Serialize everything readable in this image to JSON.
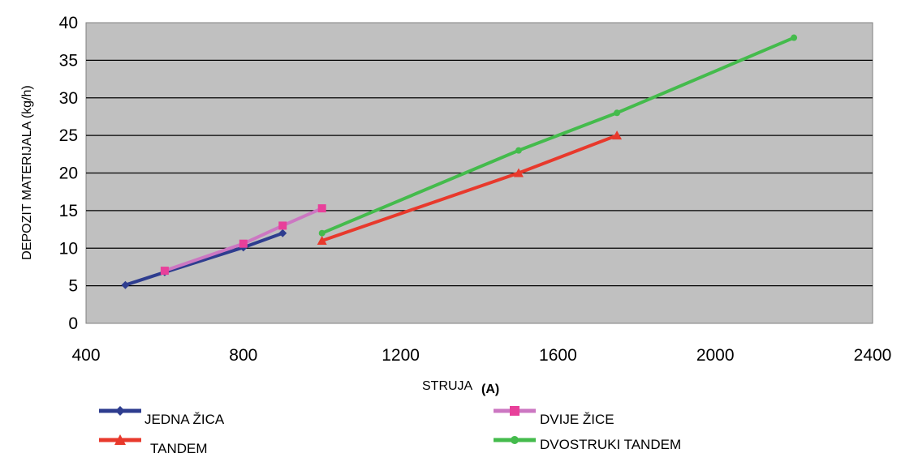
{
  "chart_data": {
    "type": "line",
    "title": "",
    "xlabel": "STRUJA",
    "xlabel_unit": "(A)",
    "ylabel": "DEPOZIT MATERIJALA (kg/h)",
    "xlim": [
      400,
      2400
    ],
    "ylim": [
      0,
      40
    ],
    "x_ticks": [
      "400",
      "800",
      "1200",
      "1600",
      "2000",
      "2400"
    ],
    "y_ticks": [
      "0",
      "5",
      "10",
      "15",
      "20",
      "25",
      "30",
      "35",
      "40"
    ],
    "grid": true,
    "legend_position": "bottom",
    "series": [
      {
        "name": "JEDNA ŽICA",
        "color": "#2E3D8F",
        "marker": "diamond",
        "x": [
          500,
          600,
          800,
          900
        ],
        "y": [
          5.1,
          6.8,
          10.1,
          12.0
        ]
      },
      {
        "name": "DVIJE ŽICE",
        "color": "#CC77C2",
        "marker": "square",
        "marker_color": "#E8409A",
        "x": [
          600,
          800,
          900,
          1000
        ],
        "y": [
          7.0,
          10.6,
          13.0,
          15.3
        ]
      },
      {
        "name": "TANDEM",
        "color": "#E8392C",
        "marker": "triangle",
        "x": [
          1000,
          1500,
          1750
        ],
        "y": [
          11.0,
          20.0,
          25.0
        ]
      },
      {
        "name": "DVOSTRUKI TANDEM",
        "color": "#44BB4C",
        "marker": "circle",
        "x": [
          1000,
          1500,
          1750,
          2200
        ],
        "y": [
          12.0,
          23.0,
          28.0,
          38.0
        ]
      }
    ]
  }
}
